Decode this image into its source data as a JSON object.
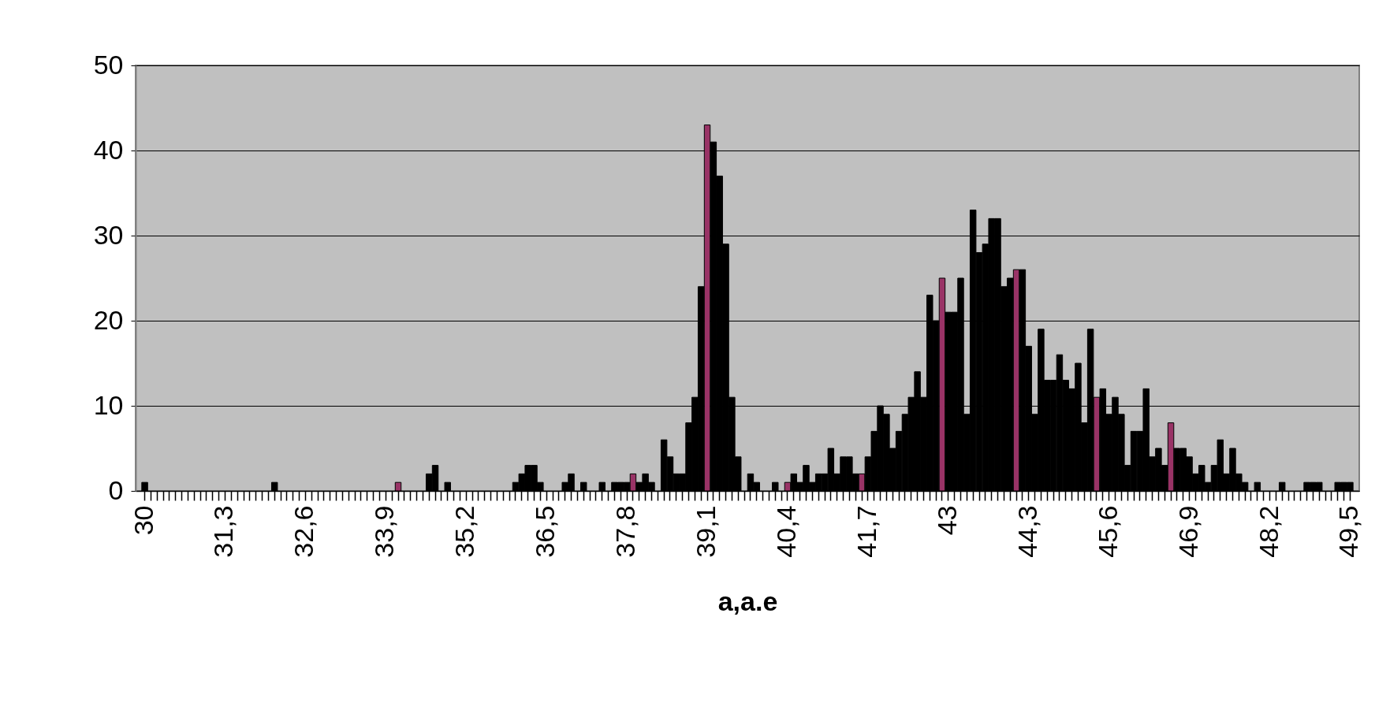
{
  "chart_data": {
    "type": "bar",
    "xlabel": "a,a.e",
    "categories": [
      "30",
      null,
      null,
      null,
      null,
      null,
      null,
      null,
      null,
      null,
      null,
      null,
      null,
      "31,3",
      null,
      null,
      null,
      null,
      null,
      null,
      null,
      null,
      null,
      null,
      null,
      null,
      "32,6",
      null,
      null,
      null,
      null,
      null,
      null,
      null,
      null,
      null,
      null,
      null,
      null,
      "33,9",
      null,
      null,
      null,
      null,
      null,
      null,
      null,
      null,
      null,
      null,
      null,
      null,
      "35,2",
      null,
      null,
      null,
      null,
      null,
      null,
      null,
      null,
      null,
      null,
      null,
      null,
      "36,5",
      null,
      null,
      null,
      null,
      null,
      null,
      null,
      null,
      null,
      null,
      null,
      null,
      "37,8",
      null,
      null,
      null,
      null,
      null,
      null,
      null,
      null,
      null,
      null,
      null,
      null,
      "39,1",
      null,
      null,
      null,
      null,
      null,
      null,
      null,
      null,
      null,
      null,
      null,
      null,
      "40,4",
      null,
      null,
      null,
      null,
      null,
      null,
      null,
      null,
      null,
      null,
      null,
      null,
      "41,7",
      null,
      null,
      null,
      null,
      null,
      null,
      null,
      null,
      null,
      null,
      null,
      null,
      "43",
      null,
      null,
      null,
      null,
      null,
      null,
      null,
      null,
      null,
      null,
      null,
      null,
      "44,3",
      null,
      null,
      null,
      null,
      null,
      null,
      null,
      null,
      null,
      null,
      null,
      null,
      "45,6",
      null,
      null,
      null,
      null,
      null,
      null,
      null,
      null,
      null,
      null,
      null,
      null,
      "46,9",
      null,
      null,
      null,
      null,
      null,
      null,
      null,
      null,
      null,
      null,
      null,
      null,
      "48,2",
      null,
      null,
      null,
      null,
      null,
      null,
      null,
      null,
      null,
      null,
      null,
      null,
      "49,5"
    ],
    "values": [
      1,
      0,
      0,
      0,
      0,
      0,
      0,
      0,
      0,
      0,
      0,
      0,
      0,
      0,
      0,
      0,
      0,
      0,
      0,
      0,
      0,
      1,
      0,
      0,
      0,
      0,
      0,
      0,
      0,
      0,
      0,
      0,
      0,
      0,
      0,
      0,
      0,
      0,
      0,
      0,
      0,
      1,
      0,
      0,
      0,
      0,
      2,
      3,
      0,
      1,
      0,
      0,
      0,
      0,
      0,
      0,
      0,
      0,
      0,
      0,
      1,
      2,
      3,
      3,
      1,
      0,
      0,
      0,
      1,
      2,
      0,
      1,
      0,
      0,
      1,
      0,
      1,
      1,
      1,
      2,
      1,
      2,
      1,
      0,
      6,
      4,
      2,
      2,
      8,
      11,
      24,
      43,
      41,
      37,
      29,
      11,
      4,
      0,
      2,
      1,
      0,
      0,
      1,
      0,
      1,
      2,
      1,
      3,
      1,
      2,
      2,
      5,
      2,
      4,
      4,
      2,
      2,
      4,
      7,
      10,
      9,
      5,
      7,
      9,
      11,
      14,
      11,
      23,
      20,
      25,
      21,
      21,
      25,
      9,
      33,
      28,
      29,
      32,
      32,
      24,
      25,
      26,
      26,
      17,
      9,
      19,
      13,
      13,
      16,
      13,
      12,
      15,
      8,
      19,
      11,
      12,
      9,
      11,
      9,
      3,
      7,
      7,
      12,
      4,
      5,
      3,
      8,
      5,
      5,
      4,
      2,
      3,
      1,
      3,
      6,
      2,
      5,
      2,
      1,
      0,
      1,
      0,
      0,
      0,
      1,
      0,
      0,
      0,
      1,
      1,
      1,
      0,
      0,
      1,
      1,
      1
    ],
    "colors": [
      "#000000",
      "#000000",
      "#000000",
      "#000000",
      "#000000",
      "#000000",
      "#000000",
      "#000000",
      "#000000",
      "#000000",
      "#000000",
      "#000000",
      "#000000",
      "#000000",
      "#000000",
      "#000000",
      "#000000",
      "#000000",
      "#000000",
      "#000000",
      "#000000",
      "#000000",
      "#000000",
      "#000000",
      "#000000",
      "#000000",
      "#000000",
      "#000000",
      "#000000",
      "#000000",
      "#000000",
      "#000000",
      "#000000",
      "#000000",
      "#000000",
      "#000000",
      "#000000",
      "#000000",
      "#000000",
      "#000000",
      "#000000",
      "#993366",
      "#000000",
      "#000000",
      "#000000",
      "#000000",
      "#000000",
      "#000000",
      "#000000",
      "#000000",
      "#000000",
      "#000000",
      "#000000",
      "#000000",
      "#000000",
      "#000000",
      "#000000",
      "#000000",
      "#000000",
      "#000000",
      "#000000",
      "#000000",
      "#000000",
      "#000000",
      "#000000",
      "#000000",
      "#000000",
      "#000000",
      "#000000",
      "#000000",
      "#000000",
      "#000000",
      "#000000",
      "#000000",
      "#000000",
      "#000000",
      "#000000",
      "#000000",
      "#000000",
      "#993366",
      "#000000",
      "#000000",
      "#000000",
      "#000000",
      "#000000",
      "#000000",
      "#000000",
      "#000000",
      "#000000",
      "#000000",
      "#000000",
      "#993366",
      "#000000",
      "#000000",
      "#000000",
      "#000000",
      "#000000",
      "#000000",
      "#000000",
      "#000000",
      "#000000",
      "#000000",
      "#000000",
      "#000000",
      "#993366",
      "#000000",
      "#000000",
      "#000000",
      "#000000",
      "#000000",
      "#000000",
      "#000000",
      "#000000",
      "#000000",
      "#000000",
      "#000000",
      "#993366",
      "#000000",
      "#000000",
      "#000000",
      "#000000",
      "#000000",
      "#000000",
      "#000000",
      "#000000",
      "#000000",
      "#000000",
      "#000000",
      "#000000",
      "#993366",
      "#000000",
      "#000000",
      "#000000",
      "#000000",
      "#000000",
      "#000000",
      "#000000",
      "#000000",
      "#000000",
      "#000000",
      "#000000",
      "#993366",
      "#000000",
      "#000000",
      "#000000",
      "#000000",
      "#000000",
      "#000000",
      "#000000",
      "#000000",
      "#000000",
      "#000000",
      "#000000",
      "#000000",
      "#993366",
      "#000000",
      "#000000",
      "#000000",
      "#000000",
      "#000000",
      "#000000",
      "#000000",
      "#000000",
      "#000000",
      "#000000",
      "#000000",
      "#993366",
      "#000000",
      "#000000",
      "#000000",
      "#000000",
      "#000000",
      "#000000",
      "#000000",
      "#000000",
      "#000000",
      "#000000",
      "#000000",
      "#000000",
      "#000000",
      "#000000",
      "#000000",
      "#000000",
      "#000000",
      "#000000",
      "#000000",
      "#000000",
      "#000000",
      "#000000",
      "#000000",
      "#000000",
      "#000000",
      "#000000",
      "#000000",
      "#000000",
      "#000000"
    ],
    "ylim": [
      0,
      50
    ],
    "yticks": [
      0,
      10,
      20,
      30,
      40,
      50
    ],
    "grid": "y"
  }
}
